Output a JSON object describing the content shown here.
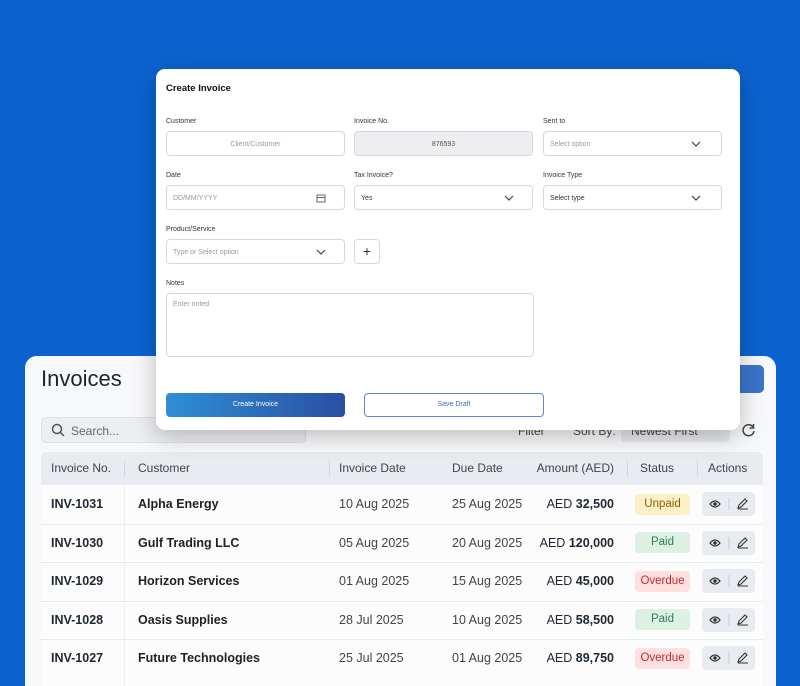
{
  "invoices_panel": {
    "title": "Invoices",
    "search_placeholder": "Search...",
    "filter": "Filter",
    "sort_label": "Sort By:",
    "sort_value": "Newest First"
  },
  "table": {
    "headers": [
      "Invoice No.",
      "Customer",
      "Invoice Date",
      "Due Date",
      "Amount (AED)",
      "Status",
      "Actions"
    ],
    "rows": [
      {
        "invoice_no": "INV-1031",
        "customer": "Alpha Energy",
        "invoice_date": "10 Aug 2025",
        "due_date": "25 Aug 2025",
        "currency": "AED",
        "amount": "32,500",
        "status": "Unpaid"
      },
      {
        "invoice_no": "INV-1030",
        "customer": "Gulf Trading LLC",
        "invoice_date": "05 Aug 2025",
        "due_date": "20 Aug 2025",
        "currency": "AED",
        "amount": "120,000",
        "status": "Paid"
      },
      {
        "invoice_no": "INV-1029",
        "customer": "Horizon Services",
        "invoice_date": "01 Aug 2025",
        "due_date": "15 Aug 2025",
        "currency": "AED",
        "amount": "45,000",
        "status": "Overdue"
      },
      {
        "invoice_no": "INV-1028",
        "customer": "Oasis Supplies",
        "invoice_date": "28 Jul 2025",
        "due_date": "10 Aug 2025",
        "currency": "AED",
        "amount": "58,500",
        "status": "Paid"
      },
      {
        "invoice_no": "INV-1027",
        "customer": "Future Technologies",
        "invoice_date": "25 Jul 2025",
        "due_date": "01 Aug 2025",
        "currency": "AED",
        "amount": "89,750",
        "status": "Overdue"
      }
    ]
  },
  "modal": {
    "title": "Create Invoice",
    "customer_label": "Customer",
    "customer_placeholder": "Client/Customer",
    "invoice_no_label": "Invoice No.",
    "invoice_no_value": "876593",
    "sent_to_label": "Sent to",
    "sent_to_placeholder": "Select option",
    "date_label": "Date",
    "date_placeholder": "DD/MM/YYYY",
    "tax_label": "Tax Invoice?",
    "tax_value": "Yes",
    "type_label": "Invoice Type",
    "type_value": "Select type",
    "product_label": "Product/Service",
    "product_placeholder": "Type or Select option",
    "notes_label": "Notes",
    "notes_placeholder": "Enter noted",
    "create_button": "Create Invoice",
    "draft_button": "Save Draft"
  }
}
